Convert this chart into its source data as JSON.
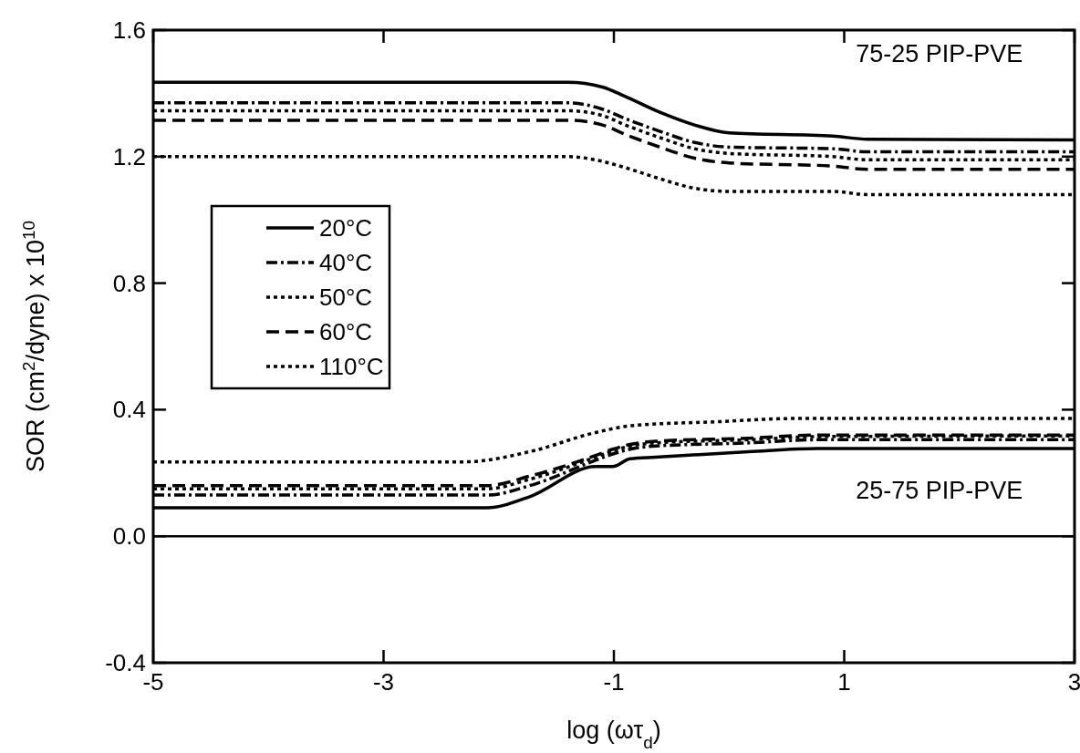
{
  "chart_data": {
    "type": "line",
    "xlabel": "log (ωτ$_{d}$)",
    "ylabel": "SOR  (cm$^{2}$/dyne)  x 10$^{10}$",
    "xlim": [
      -5,
      3
    ],
    "xticks": [
      -5,
      -3,
      -1,
      1,
      3
    ],
    "ylim": [
      -0.4,
      1.6
    ],
    "yticks": [
      -0.4,
      {
        "value": 0,
        "label": "0.0"
      },
      0.4,
      0.8,
      1.2,
      1.6
    ],
    "grid": false,
    "legend": "left",
    "annotations": [
      "75-25 PIP-PVE",
      "25-75 PIP-PVE"
    ],
    "ref_lines": [
      {
        "axis": "y",
        "value": 0,
        "color": "#000000",
        "line_style": "solid"
      }
    ],
    "series": [
      {
        "name": "20°C",
        "color": "#000000",
        "line_style": "solid",
        "x": [
          -5,
          -1.4,
          -1.1,
          -0.9,
          -0.6,
          -0.3,
          0,
          0.9,
          1.2,
          3
        ],
        "values": [
          1.435,
          1.435,
          1.42,
          1.39,
          1.34,
          1.3,
          1.275,
          1.265,
          1.255,
          1.253
        ]
      },
      {
        "name": "40°C",
        "color": "#000000",
        "line_style": "dashdot",
        "x": [
          -5,
          -1.4,
          -1.1,
          -0.9,
          -0.6,
          -0.3,
          0,
          0.9,
          1.2,
          3
        ],
        "values": [
          1.37,
          1.37,
          1.35,
          1.32,
          1.28,
          1.245,
          1.23,
          1.225,
          1.215,
          1.215
        ]
      },
      {
        "name": "50°C",
        "color": "#000000",
        "line_style": "dotted",
        "x": [
          -5,
          -1.4,
          -1.1,
          -0.9,
          -0.6,
          -0.3,
          0,
          0.9,
          1.2,
          3
        ],
        "values": [
          1.345,
          1.345,
          1.33,
          1.3,
          1.26,
          1.225,
          1.21,
          1.2,
          1.19,
          1.19
        ]
      },
      {
        "name": "60°C",
        "color": "#000000",
        "line_style": "dashed",
        "x": [
          -5,
          -1.4,
          -1.1,
          -0.9,
          -0.6,
          -0.3,
          0,
          0.9,
          1.2,
          3
        ],
        "values": [
          1.315,
          1.315,
          1.3,
          1.27,
          1.23,
          1.195,
          1.18,
          1.17,
          1.16,
          1.16
        ]
      },
      {
        "name": "110°C",
        "color": "#000000",
        "line_style": "dotted",
        "x": [
          -5,
          -1.4,
          -1.1,
          -0.9,
          -0.6,
          -0.3,
          0,
          0.9,
          1.2,
          3
        ],
        "values": [
          1.2,
          1.2,
          1.185,
          1.165,
          1.13,
          1.1,
          1.09,
          1.09,
          1.08,
          1.08
        ]
      },
      {
        "color": "#000000",
        "line_style": "solid",
        "x": [
          -5,
          -2.1,
          -1.73,
          -1.16,
          -1.01,
          -0.86,
          -0.64,
          0.17,
          0.77,
          3
        ],
        "values": [
          0.09,
          0.09,
          0.125,
          0.22,
          0.22,
          0.245,
          0.25,
          0.267,
          0.277,
          0.277
        ]
      },
      {
        "color": "#000000",
        "line_style": "dashdot",
        "x": [
          -5,
          -2.1,
          -1.73,
          -1.16,
          -1.01,
          -0.86,
          -0.64,
          0.17,
          0.77,
          3
        ],
        "values": [
          0.13,
          0.13,
          0.16,
          0.24,
          0.26,
          0.275,
          0.285,
          0.295,
          0.305,
          0.305
        ]
      },
      {
        "color": "#000000",
        "line_style": "dotted",
        "x": [
          -5,
          -2.1,
          -1.73,
          -1.16,
          -1.01,
          -0.86,
          -0.64,
          0.17,
          0.77,
          3
        ],
        "values": [
          0.15,
          0.15,
          0.18,
          0.25,
          0.27,
          0.285,
          0.295,
          0.305,
          0.315,
          0.317
        ]
      },
      {
        "color": "#000000",
        "line_style": "dashed",
        "x": [
          -5,
          -2.1,
          -1.73,
          -1.16,
          -1.01,
          -0.86,
          -0.64,
          0.17,
          0.77,
          3
        ],
        "values": [
          0.16,
          0.16,
          0.19,
          0.255,
          0.275,
          0.29,
          0.3,
          0.31,
          0.32,
          0.32
        ]
      },
      {
        "color": "#000000",
        "line_style": "dotted",
        "x": [
          -5,
          -2.3,
          -1.7,
          -1.19,
          -0.83,
          -0.1,
          0.56,
          3
        ],
        "values": [
          0.235,
          0.235,
          0.27,
          0.325,
          0.35,
          0.362,
          0.372,
          0.372
        ]
      }
    ]
  }
}
